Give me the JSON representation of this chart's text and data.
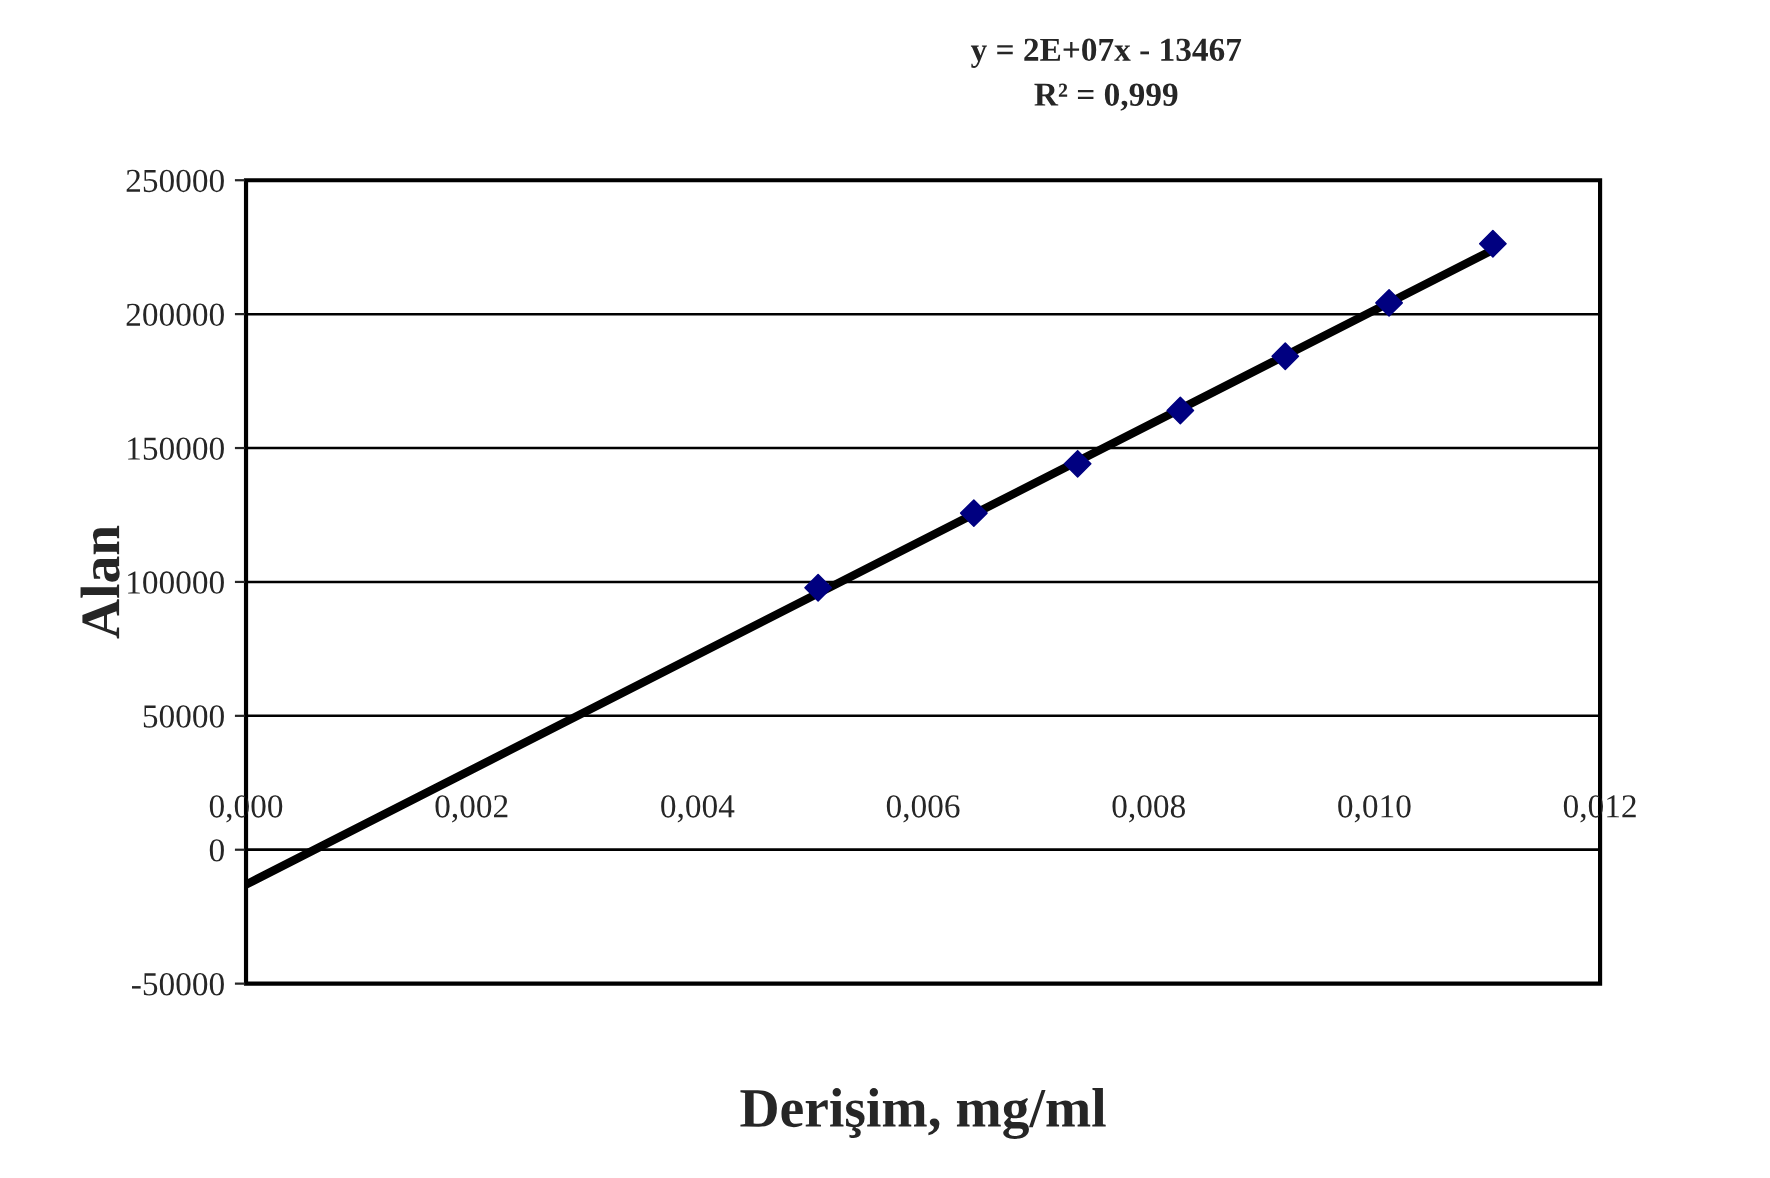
{
  "chart_data": {
    "type": "scatter",
    "xlabel": "Derişim, mg/ml",
    "ylabel": "Alan",
    "annotations": [
      "y = 2E+07x - 13467",
      "R² = 0,999"
    ],
    "series": [
      {
        "color": "#000080",
        "marker": "diamond",
        "x": [
          0.00507,
          0.00645,
          0.00737,
          0.00828,
          0.00921,
          0.01013,
          0.01105
        ],
        "values": [
          97800,
          125700,
          144100,
          164000,
          184300,
          204200,
          226300
        ]
      },
      {
        "type": "line",
        "color": "#000000",
        "line_style": "solid",
        "marker": "none",
        "x": [
          0,
          0.01105
        ],
        "values": [
          -13000,
          224000
        ]
      }
    ],
    "xlim": [
      0,
      0.012
    ],
    "ylim": [
      -50000,
      250000
    ],
    "xticks": [
      {
        "value": 0,
        "label": "0,000"
      },
      {
        "value": 0.002,
        "label": "0,002"
      },
      {
        "value": 0.004,
        "label": "0,004"
      },
      {
        "value": 0.006,
        "label": "0,006"
      },
      {
        "value": 0.008,
        "label": "0,008"
      },
      {
        "value": 0.01,
        "label": "0,010"
      },
      {
        "value": 0.012,
        "label": "0,012"
      }
    ],
    "yticks": [
      -50000,
      0,
      50000,
      100000,
      150000,
      200000,
      250000
    ],
    "grid": "y",
    "legend": false
  }
}
